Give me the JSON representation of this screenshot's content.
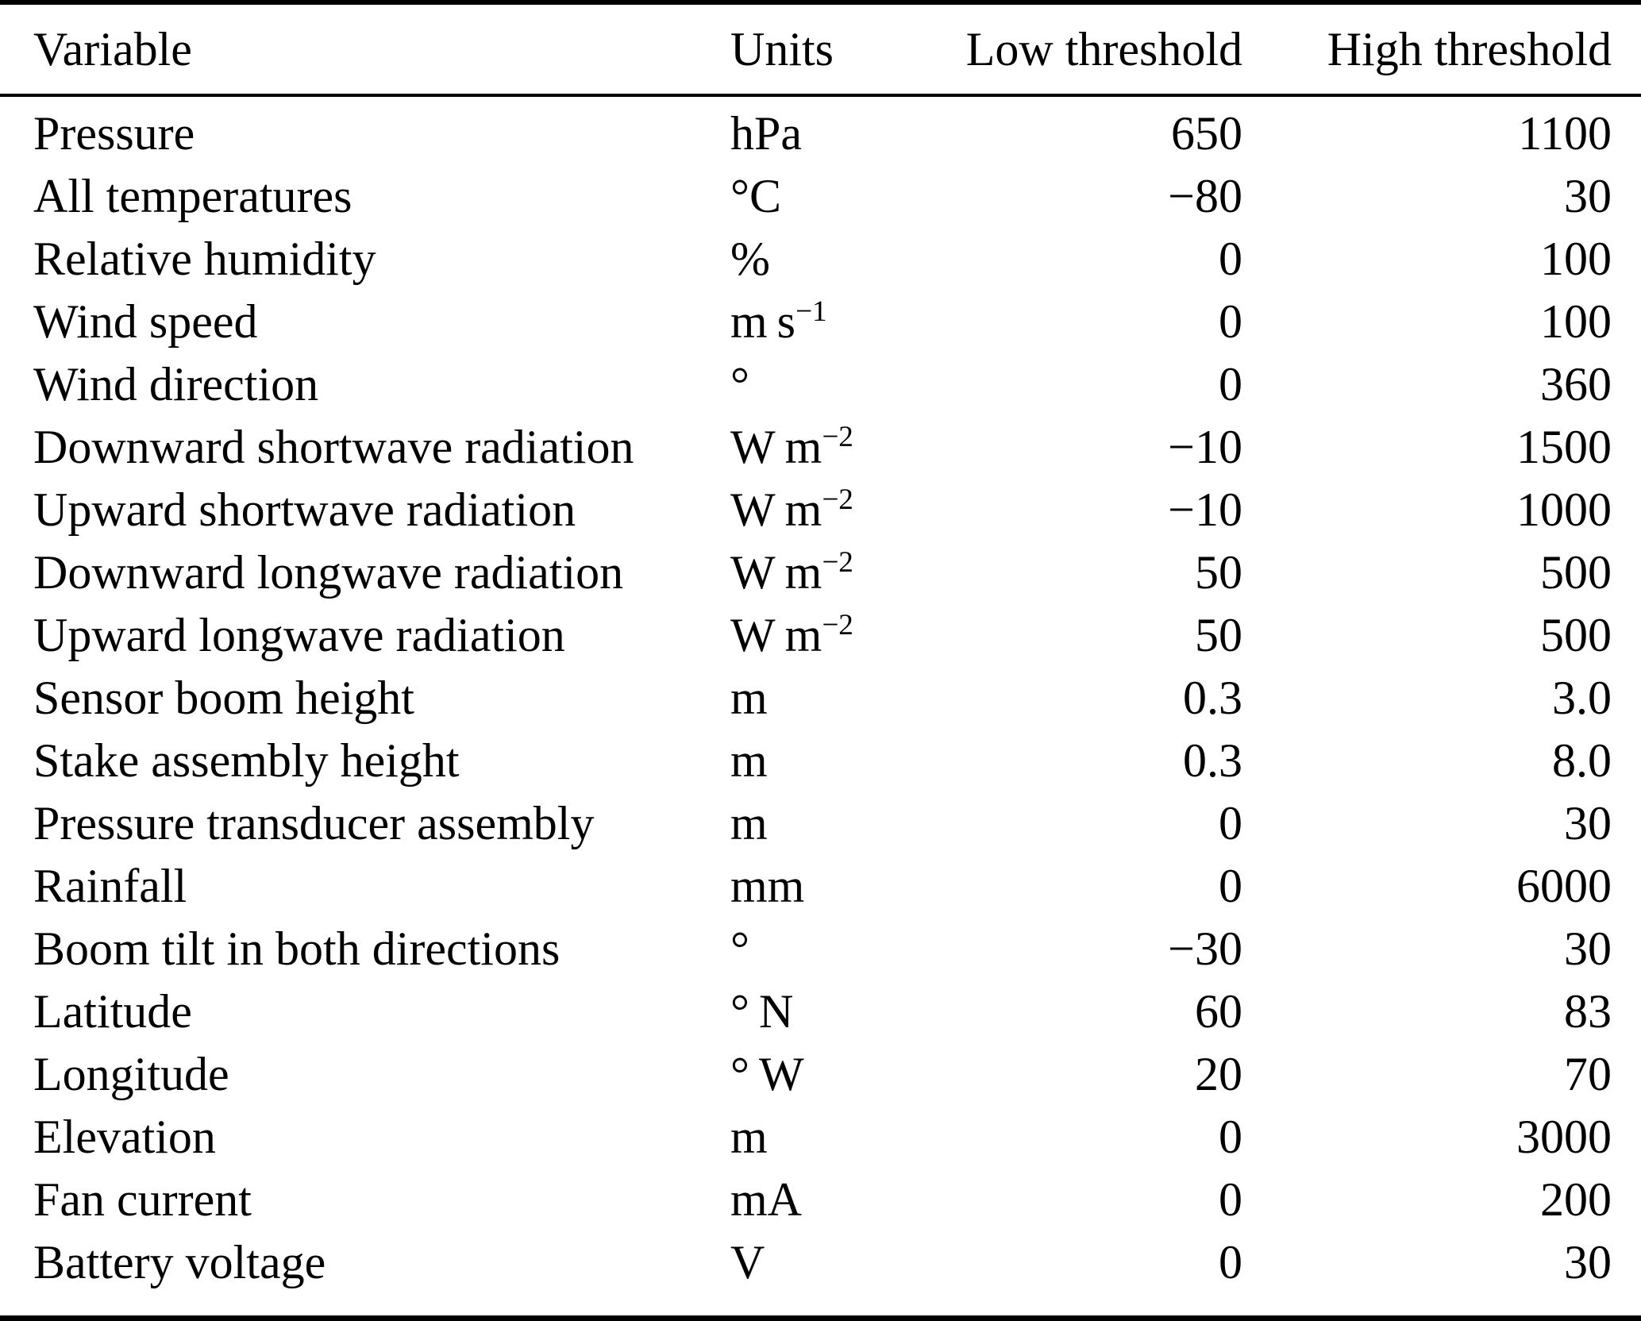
{
  "table": {
    "header": {
      "variable": "Variable",
      "units": "Units",
      "low": "Low threshold",
      "high": "High threshold"
    },
    "rows": [
      {
        "variable": "Pressure",
        "unit_base": "hPa",
        "unit_sup": "",
        "low": "650",
        "high": "1100"
      },
      {
        "variable": "All temperatures",
        "unit_base": "°C",
        "unit_sup": "",
        "low": "−80",
        "high": "30"
      },
      {
        "variable": "Relative humidity",
        "unit_base": "%",
        "unit_sup": "",
        "low": "0",
        "high": "100"
      },
      {
        "variable": "Wind speed",
        "unit_base": "m s",
        "unit_sup": "−1",
        "low": "0",
        "high": "100"
      },
      {
        "variable": "Wind direction",
        "unit_base": "°",
        "unit_sup": "",
        "low": "0",
        "high": "360"
      },
      {
        "variable": "Downward shortwave radiation",
        "unit_base": "W m",
        "unit_sup": "−2",
        "low": "−10",
        "high": "1500"
      },
      {
        "variable": "Upward shortwave radiation",
        "unit_base": "W m",
        "unit_sup": "−2",
        "low": "−10",
        "high": "1000"
      },
      {
        "variable": "Downward longwave radiation",
        "unit_base": "W m",
        "unit_sup": "−2",
        "low": "50",
        "high": "500"
      },
      {
        "variable": "Upward longwave radiation",
        "unit_base": "W m",
        "unit_sup": "−2",
        "low": "50",
        "high": "500"
      },
      {
        "variable": "Sensor boom height",
        "unit_base": "m",
        "unit_sup": "",
        "low": "0.3",
        "high": "3.0"
      },
      {
        "variable": "Stake assembly height",
        "unit_base": "m",
        "unit_sup": "",
        "low": "0.3",
        "high": "8.0"
      },
      {
        "variable": "Pressure transducer assembly",
        "unit_base": "m",
        "unit_sup": "",
        "low": "0",
        "high": "30"
      },
      {
        "variable": "Rainfall",
        "unit_base": "mm",
        "unit_sup": "",
        "low": "0",
        "high": "6000"
      },
      {
        "variable": "Boom tilt in both directions",
        "unit_base": "°",
        "unit_sup": "",
        "low": "−30",
        "high": "30"
      },
      {
        "variable": "Latitude",
        "unit_base": "° N",
        "unit_sup": "",
        "low": "60",
        "high": "83"
      },
      {
        "variable": "Longitude",
        "unit_base": "° W",
        "unit_sup": "",
        "low": "20",
        "high": "70"
      },
      {
        "variable": "Elevation",
        "unit_base": "m",
        "unit_sup": "",
        "low": "0",
        "high": "3000"
      },
      {
        "variable": "Fan current",
        "unit_base": "mA",
        "unit_sup": "",
        "low": "0",
        "high": "200"
      },
      {
        "variable": "Battery voltage",
        "unit_base": "V",
        "unit_sup": "",
        "low": "0",
        "high": "30"
      }
    ]
  },
  "style": {
    "text_color": "#000000",
    "background": "#ffffff",
    "rule_color": "#000000"
  }
}
